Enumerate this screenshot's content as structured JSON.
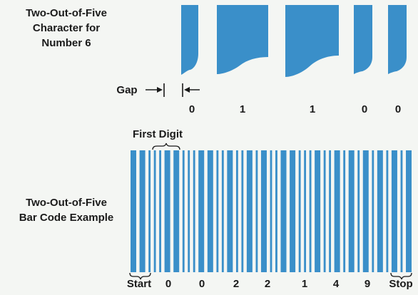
{
  "char_section": {
    "title_lines": [
      "Two-Out-of-Five",
      "Character for",
      "Number 6"
    ],
    "gap_label": "Gap",
    "bit_values": [
      "0",
      "1",
      "1",
      "0",
      "0"
    ],
    "bar_widths": [
      "narrow",
      "wide",
      "wide",
      "narrow",
      "narrow"
    ]
  },
  "barcode_section": {
    "title_lines": [
      "Two-Out-of-Five",
      "Bar Code Example"
    ],
    "first_digit_label": "First Digit",
    "bottom_labels": [
      "Start",
      "0",
      "0",
      "2",
      "2",
      "1",
      "4",
      "9",
      "Stop"
    ]
  },
  "colors": {
    "bar": "#3a8fc9",
    "background": "#f4f6f3",
    "text": "#1a1a1a"
  }
}
